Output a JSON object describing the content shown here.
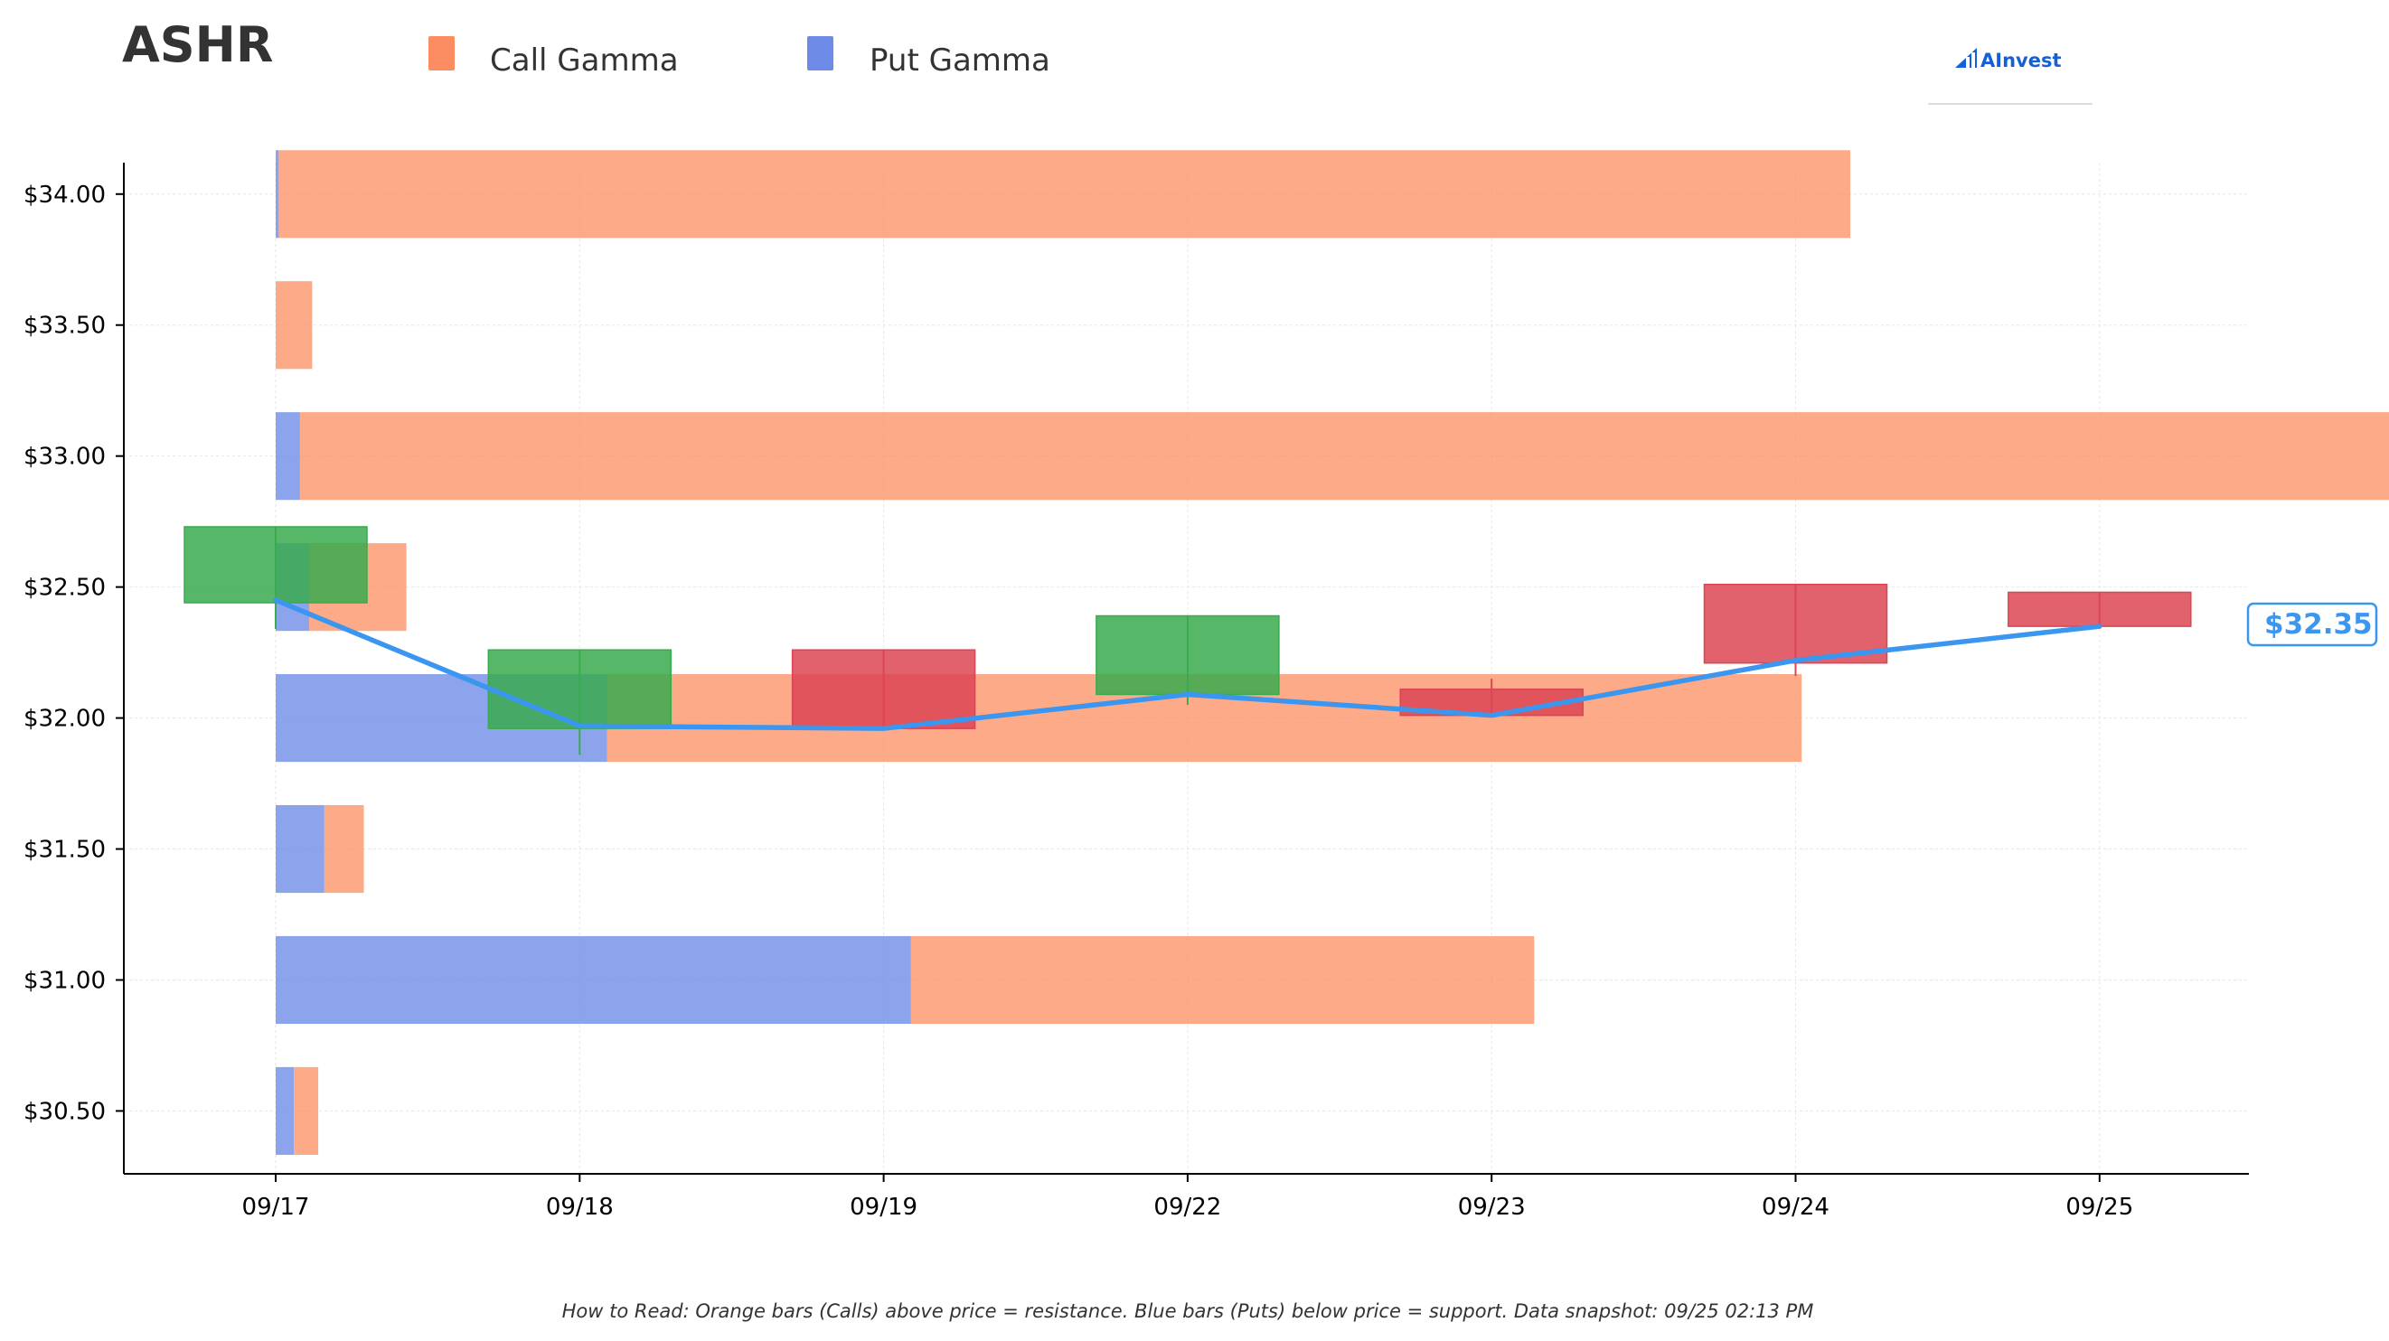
{
  "ticker": "ASHR",
  "legend": {
    "call_label": "Call Gamma",
    "put_label": "Put Gamma"
  },
  "logo": {
    "text": "AInvest"
  },
  "footnote": "How to Read: Orange bars (Calls) above price = resistance. Blue bars (Puts) below price = support. Data snapshot: 09/25 02:13 PM",
  "colors": {
    "call": "#fc8d62",
    "put": "#6c8ae6",
    "up": "#3aaa4e",
    "down": "#dc4553",
    "price_line": "#3b96f0",
    "logo": "#1560d8"
  },
  "chart_data": {
    "type": "candlestick-gamma",
    "title": "ASHR",
    "categories": [
      "09/17",
      "09/18",
      "09/19",
      "09/22",
      "09/23",
      "09/24",
      "09/25"
    ],
    "y_ticks": [
      30.5,
      31.0,
      31.5,
      32.0,
      32.5,
      33.0,
      33.5,
      34.0
    ],
    "y_tick_labels": [
      "$30.50",
      "$31.00",
      "$31.50",
      "$32.00",
      "$32.50",
      "$33.00",
      "$33.50",
      "$34.00"
    ],
    "ylim": [
      30.26,
      34.12
    ],
    "grid": true,
    "gamma_bars": {
      "strikes": [
        34.0,
        33.5,
        33.0,
        32.5,
        32.0,
        31.5,
        31.0,
        30.5
      ],
      "put_gamma": [
        0.01,
        0.0,
        0.08,
        0.11,
        1.09,
        0.16,
        2.09,
        0.06
      ],
      "call_gamma": [
        5.17,
        0.12,
        6.92,
        0.32,
        3.93,
        0.13,
        2.05,
        0.08
      ],
      "x_scale_note": "bar length measured in day-widths from 09/17"
    },
    "candles": [
      {
        "date": "09/17",
        "open": 32.44,
        "high": 32.73,
        "low": 32.34,
        "close": 32.73
      },
      {
        "date": "09/18",
        "open": 31.96,
        "high": 32.26,
        "low": 31.86,
        "close": 32.26
      },
      {
        "date": "09/19",
        "open": 32.26,
        "high": 32.26,
        "low": 31.96,
        "close": 31.96
      },
      {
        "date": "09/22",
        "open": 32.09,
        "high": 32.39,
        "low": 32.05,
        "close": 32.39
      },
      {
        "date": "09/23",
        "open": 32.11,
        "high": 32.15,
        "low": 32.01,
        "close": 32.01
      },
      {
        "date": "09/24",
        "open": 32.51,
        "high": 32.51,
        "low": 32.16,
        "close": 32.21
      },
      {
        "date": "09/25",
        "open": 32.48,
        "high": 32.48,
        "low": 32.35,
        "close": 32.35
      }
    ],
    "price_line": {
      "values": [
        32.45,
        31.97,
        31.96,
        32.09,
        32.01,
        32.22,
        32.35
      ],
      "last_label": "$32.35"
    }
  }
}
